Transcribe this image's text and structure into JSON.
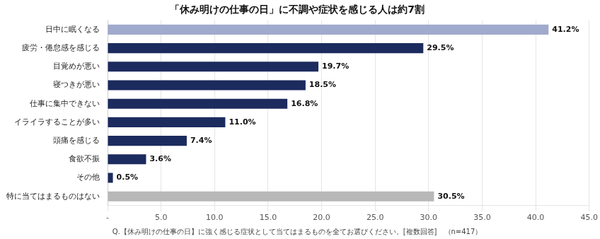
{
  "chart_data": {
    "type": "bar",
    "orientation": "horizontal",
    "title": "「休み明けの仕事の日」に不調や症状を感じる人は約7割",
    "subtitle": "Q.【休み明けの仕事の日】に強く感じる症状として当てはまるものを全てお選びください。[複数回答]　（n=417）",
    "categories": [
      "日中に眠くなる",
      "疲労・倦怠感を感じる",
      "目覚めが悪い",
      "寝つきが悪い",
      "仕事に集中できない",
      "イライラすることが多い",
      "頭痛を感じる",
      "食欲不振",
      "その他",
      "特に当てはまるものはない"
    ],
    "values": [
      41.2,
      29.5,
      19.7,
      18.5,
      16.8,
      11.0,
      7.4,
      3.6,
      0.5,
      30.5
    ],
    "value_labels": [
      "41.2%",
      "29.5%",
      "19.7%",
      "18.5%",
      "16.8%",
      "11.0%",
      "7.4%",
      "3.6%",
      "0.5%",
      "30.5%"
    ],
    "data_labels": true,
    "colors": [
      "#a0aacc",
      "#1c2b5e",
      "#1c2b5e",
      "#1c2b5e",
      "#1c2b5e",
      "#1c2b5e",
      "#1c2b5e",
      "#1c2b5e",
      "#1c2b5e",
      "#b8b8b8"
    ],
    "xlim": [
      0,
      45
    ],
    "xticks": [
      {
        "value": 0,
        "label": "-"
      },
      {
        "value": 5,
        "label": "5.0"
      },
      {
        "value": 10,
        "label": "10.0"
      },
      {
        "value": 15,
        "label": "15.0"
      },
      {
        "value": 20,
        "label": "20.0"
      },
      {
        "value": 25,
        "label": "25.0"
      },
      {
        "value": 30,
        "label": "30.0"
      },
      {
        "value": 35,
        "label": "35.0"
      },
      {
        "value": 40,
        "label": "40.0"
      },
      {
        "value": 45,
        "label": "45.0"
      }
    ],
    "grid": true
  }
}
